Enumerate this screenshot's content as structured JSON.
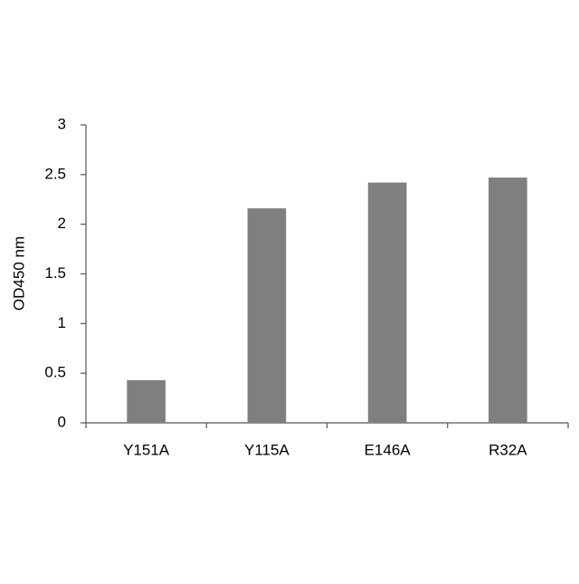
{
  "chart_data": {
    "type": "bar",
    "y_label": "OD450 nm",
    "categories": [
      "Y151A",
      "Y115A",
      "E146A",
      "R32A"
    ],
    "values": [
      0.43,
      2.16,
      2.42,
      2.47
    ],
    "color": "#7f7f7f",
    "ylim": [
      0,
      3
    ],
    "yticks": [
      0,
      0.5,
      1,
      1.5,
      2,
      2.5,
      3
    ],
    "grid": false
  }
}
